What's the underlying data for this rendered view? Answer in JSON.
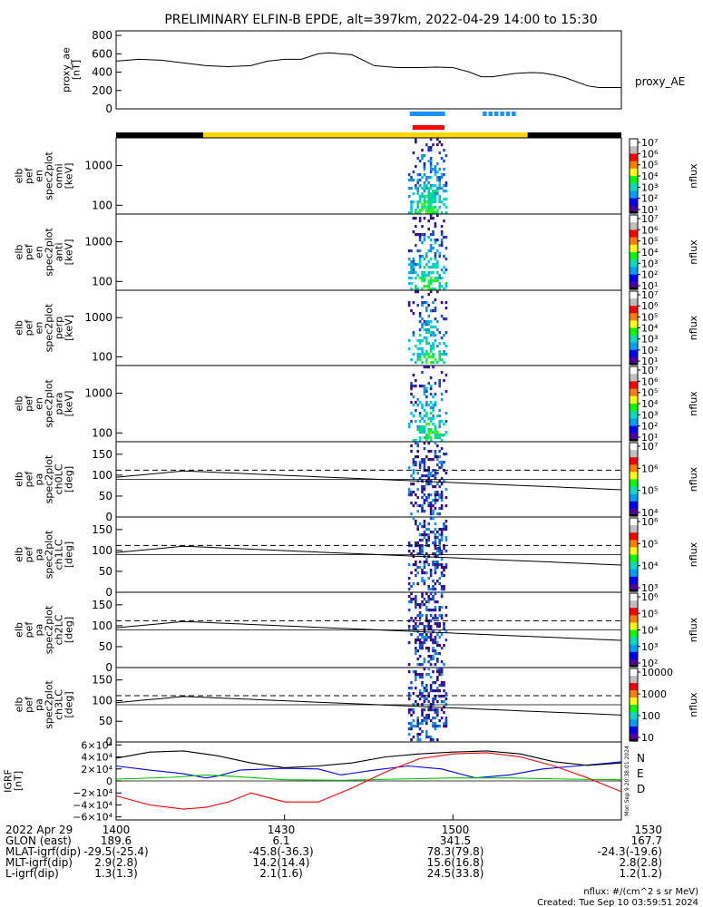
{
  "title": "PRELIMINARY ELFIN-B EPDE, alt=397km, 2022-04-29 14:00 to 15:30",
  "ae_panel": {
    "ylabel": "proxy_ae\n[nT]",
    "legend": "proxy_AE",
    "yticks": [
      "800",
      "600",
      "400",
      "200",
      "0"
    ]
  },
  "spec_panels": [
    {
      "ylabel": [
        "elb",
        "pef",
        "en",
        "spec2plot",
        "omni",
        "[keV]"
      ],
      "yticks": [
        "1000",
        "100"
      ]
    },
    {
      "ylabel": [
        "elb",
        "pef",
        "en",
        "spec2plot",
        "anti",
        "[keV]"
      ],
      "yticks": [
        "1000",
        "100"
      ]
    },
    {
      "ylabel": [
        "elb",
        "pef",
        "en",
        "spec2plot",
        "perp",
        "[keV]"
      ],
      "yticks": [
        "1000",
        "100"
      ]
    },
    {
      "ylabel": [
        "elb",
        "pef",
        "en",
        "spec2plot",
        "para",
        "[keV]"
      ],
      "yticks": [
        "1000",
        "100"
      ]
    }
  ],
  "pa_panels": [
    {
      "ylabel": [
        "elb",
        "pef",
        "pa",
        "spec2plot",
        "ch0LC",
        "[deg]"
      ],
      "yticks": [
        "150",
        "100",
        "50",
        "0"
      ]
    },
    {
      "ylabel": [
        "elb",
        "pef",
        "pa",
        "spec2plot",
        "ch1LC",
        "[deg]"
      ],
      "yticks": [
        "150",
        "100",
        "50",
        "0"
      ]
    },
    {
      "ylabel": [
        "elb",
        "pef",
        "pa",
        "spec2plot",
        "ch2LC",
        "[deg]"
      ],
      "yticks": [
        "150",
        "100",
        "50",
        "0"
      ]
    },
    {
      "ylabel": [
        "elb",
        "pef",
        "pa",
        "spec2plot",
        "ch3LC",
        "[deg]"
      ],
      "yticks": [
        "150",
        "100",
        "50",
        "0"
      ]
    }
  ],
  "colorbars": [
    {
      "label": "nflux",
      "ticks": [
        "10⁷",
        "10⁶",
        "10⁵",
        "10⁴",
        "10³",
        "10²",
        "10¹"
      ]
    },
    {
      "label": "nflux",
      "ticks": [
        "10⁷",
        "10⁶",
        "10⁵",
        "10⁴",
        "10³",
        "10²",
        "10¹"
      ]
    },
    {
      "label": "nflux",
      "ticks": [
        "10⁷",
        "10⁶",
        "10⁵",
        "10⁴",
        "10³",
        "10²",
        "10¹"
      ]
    },
    {
      "label": "nflux",
      "ticks": [
        "10⁷",
        "10⁶",
        "10⁵",
        "10⁴",
        "10³",
        "10²",
        "10¹"
      ]
    },
    {
      "label": "nflux",
      "ticks": [
        "10⁷",
        "10⁶",
        "10⁵",
        "10⁴"
      ]
    },
    {
      "label": "nflux",
      "ticks": [
        "10⁶",
        "10⁵",
        "10⁴",
        "10³"
      ]
    },
    {
      "label": "nflux",
      "ticks": [
        "10⁶",
        "10⁵",
        "10⁴",
        "10³",
        "10²"
      ]
    },
    {
      "label": "nflux",
      "ticks": [
        "10000",
        "1000",
        "100",
        "10"
      ]
    }
  ],
  "igrf_panel": {
    "ylabel": "IGRF\n[nT]",
    "yticks": [
      "6×10⁴",
      "4×10⁴",
      "2×10⁴",
      "0",
      "−2×10⁴",
      "−4×10⁴",
      "−6×10⁴"
    ],
    "legend": [
      {
        "label": "N",
        "color": "#0000ff"
      },
      {
        "label": "E",
        "color": "#00c000"
      },
      {
        "label": "D",
        "color": "#ff0000"
      }
    ],
    "side_text": "Mon Sep 9 20:38:01 2024"
  },
  "x_axis": {
    "ticks": [
      {
        "label": "1400",
        "t": 0
      },
      {
        "label": "1430",
        "t": 30
      },
      {
        "label": "1500",
        "t": 60
      },
      {
        "label": "1530",
        "t": 90
      }
    ],
    "range_min": [
      0,
      90
    ]
  },
  "ephemeris": {
    "rows": [
      {
        "name": "2022 Apr 29",
        "values": [
          "1400",
          "1430",
          "1500",
          "1530"
        ]
      },
      {
        "name": "GLON (east)",
        "values": [
          "189.6",
          "6.1",
          "341.5",
          "167.7"
        ]
      },
      {
        "name": "MLAT-igrf(dip)",
        "values": [
          "-29.5(-25.4)",
          "-45.8(-36.3)",
          "78.3(79.8)",
          "-24.3(-19.6)"
        ]
      },
      {
        "name": "MLT-igrf(dip)",
        "values": [
          "2.9(2.8)",
          "14.2(14.4)",
          "15.6(16.8)",
          "2.8(2.8)"
        ]
      },
      {
        "name": "L-igrf(dip)",
        "values": [
          "1.3(1.3)",
          "2.1(1.6)",
          "24.5(33.8)",
          "1.2(1.2)"
        ]
      }
    ]
  },
  "footer": {
    "units": "nflux: #/(cm^2 s sr MeV)",
    "created": "Created: Tue Sep 10 03:59:51 2024"
  },
  "colors": {
    "bar_black": "#000000",
    "bar_yellow": "#ffd700",
    "bar_blue": "#1e90ff",
    "bar_red": "#ff0000"
  },
  "chart_data": [
    {
      "type": "line",
      "panel": "proxy_ae",
      "x_unit": "minutes after 14:00",
      "x": [
        0,
        4,
        8,
        12,
        16,
        20,
        24,
        27,
        30,
        33,
        36,
        38,
        42,
        46,
        50,
        54,
        57,
        60,
        63,
        65,
        67,
        71,
        74,
        76,
        78,
        80,
        82,
        84,
        86,
        88,
        90
      ],
      "values": [
        520,
        540,
        530,
        500,
        470,
        460,
        470,
        520,
        540,
        540,
        600,
        610,
        590,
        470,
        450,
        450,
        455,
        450,
        400,
        350,
        350,
        385,
        395,
        390,
        370,
        340,
        295,
        250,
        232,
        232,
        232
      ],
      "ylim": [
        0,
        850
      ]
    },
    {
      "type": "line",
      "panel": "igrf",
      "x_unit": "minutes after 14:00",
      "ylim": [
        -65000,
        65000
      ],
      "series": [
        {
          "name": "N",
          "color": "#0000ff",
          "x": [
            0,
            6,
            12,
            16,
            18,
            22,
            30,
            36,
            40,
            46,
            52,
            58,
            64,
            70,
            76,
            82,
            88,
            90
          ],
          "values": [
            25000,
            18000,
            12000,
            5000,
            8000,
            18000,
            21000,
            20000,
            10000,
            18000,
            25000,
            20000,
            5000,
            10000,
            20000,
            25000,
            30000,
            32000
          ]
        },
        {
          "name": "E",
          "color": "#00c000",
          "x": [
            0,
            10,
            16,
            20,
            30,
            40,
            50,
            60,
            70,
            80,
            90
          ],
          "values": [
            3000,
            6000,
            10000,
            8000,
            2000,
            1000,
            3000,
            5000,
            5000,
            3000,
            2000
          ]
        },
        {
          "name": "D",
          "color": "#ff0000",
          "x": [
            0,
            6,
            12,
            16,
            20,
            24,
            30,
            36,
            42,
            48,
            54,
            60,
            66,
            72,
            78,
            84,
            90
          ],
          "values": [
            -25000,
            -40000,
            -47000,
            -44000,
            -35000,
            -20000,
            -35000,
            -35000,
            -12000,
            15000,
            37000,
            45000,
            47000,
            40000,
            25000,
            5000,
            -18000
          ]
        },
        {
          "name": "total",
          "color": "#000000",
          "x": [
            0,
            6,
            12,
            18,
            24,
            30,
            36,
            42,
            48,
            54,
            60,
            66,
            72,
            78,
            84,
            90
          ],
          "values": [
            38000,
            48000,
            50000,
            42000,
            30000,
            22000,
            25000,
            30000,
            40000,
            45000,
            48000,
            50000,
            45000,
            32000,
            26000,
            30000
          ]
        }
      ]
    },
    {
      "type": "heatmap",
      "panel": "spectrograms",
      "x_unit": "minutes after 14:00",
      "active_x_range": [
        52,
        59
      ],
      "energy_ylim_keV": [
        60,
        5000
      ],
      "pitch_ylim_deg": [
        0,
        180
      ],
      "loss_cone_deg": {
        "start": 95,
        "mid": 110,
        "end": 65
      },
      "loss_cone_dashed_deg": 112
    }
  ]
}
